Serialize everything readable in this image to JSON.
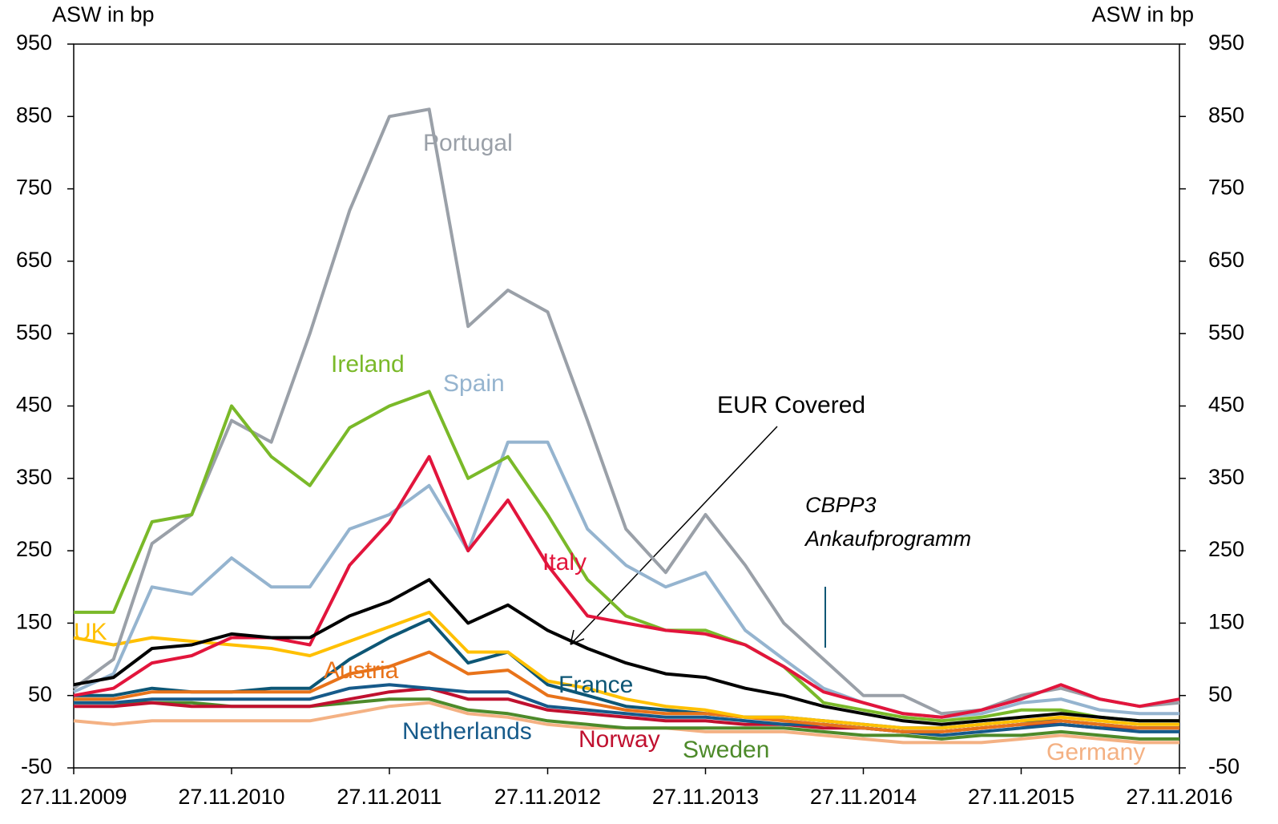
{
  "chart_data": {
    "type": "line",
    "y_label": "ASW in bp",
    "y2_label": "ASW in bp",
    "annotations": [
      "CBPP3",
      "Ankaufprogramm"
    ],
    "x": [
      "27.11.2009",
      "27.02.2010",
      "27.05.2010",
      "27.08.2010",
      "27.11.2010",
      "27.02.2011",
      "27.05.2011",
      "27.08.2011",
      "27.11.2011",
      "27.02.2012",
      "27.05.2012",
      "27.08.2012",
      "27.11.2012",
      "27.02.2013",
      "27.05.2013",
      "27.08.2013",
      "27.11.2013",
      "27.02.2014",
      "27.05.2014",
      "27.08.2014",
      "27.11.2014",
      "27.02.2015",
      "27.05.2015",
      "27.08.2015",
      "27.11.2015",
      "27.02.2016",
      "27.05.2016",
      "27.08.2016",
      "27.11.2016"
    ],
    "xlim": [
      "27.11.2009",
      "27.11.2016"
    ],
    "xticks": [
      "27.11.2009",
      "27.11.2010",
      "27.11.2011",
      "27.11.2012",
      "27.11.2013",
      "27.11.2014",
      "27.11.2015",
      "27.11.2016"
    ],
    "ylim": [
      -50,
      950
    ],
    "yticks": [
      -50,
      50,
      150,
      250,
      350,
      450,
      550,
      650,
      750,
      850,
      950
    ],
    "y2lim": [
      -50,
      950
    ],
    "y2ticks": [
      -50,
      50,
      150,
      250,
      350,
      450,
      550,
      650,
      750,
      850,
      950
    ],
    "series": [
      {
        "name": "Germany",
        "color": "#f4b183",
        "values": [
          15,
          10,
          15,
          15,
          15,
          15,
          15,
          25,
          35,
          40,
          25,
          20,
          10,
          5,
          5,
          5,
          0,
          0,
          0,
          -5,
          -10,
          -15,
          -15,
          -15,
          -10,
          -5,
          -10,
          -15,
          -15
        ]
      },
      {
        "name": "Sweden",
        "color": "#4d8a2a",
        "values": [
          40,
          40,
          40,
          40,
          35,
          35,
          35,
          40,
          45,
          45,
          30,
          25,
          15,
          10,
          5,
          5,
          5,
          5,
          5,
          0,
          -5,
          -5,
          -10,
          -5,
          -5,
          0,
          -5,
          -10,
          -10
        ]
      },
      {
        "name": "Norway",
        "color": "#c0102f",
        "values": [
          35,
          35,
          40,
          35,
          35,
          35,
          35,
          45,
          55,
          60,
          45,
          45,
          30,
          25,
          20,
          15,
          15,
          10,
          10,
          5,
          5,
          0,
          0,
          5,
          10,
          10,
          5,
          5,
          5
        ]
      },
      {
        "name": "Netherlands",
        "color": "#165a8a",
        "values": [
          40,
          40,
          45,
          45,
          45,
          45,
          45,
          60,
          65,
          60,
          55,
          55,
          35,
          30,
          25,
          20,
          20,
          15,
          10,
          10,
          5,
          0,
          -5,
          0,
          5,
          10,
          5,
          0,
          0
        ]
      },
      {
        "name": "France",
        "color": "#0d5675",
        "values": [
          50,
          50,
          60,
          55,
          55,
          60,
          60,
          100,
          130,
          155,
          95,
          110,
          65,
          50,
          35,
          30,
          25,
          20,
          20,
          15,
          10,
          5,
          5,
          10,
          15,
          15,
          10,
          5,
          5
        ]
      },
      {
        "name": "Austria",
        "color": "#e8731a",
        "values": [
          45,
          45,
          55,
          55,
          55,
          55,
          55,
          80,
          90,
          110,
          80,
          85,
          50,
          40,
          30,
          25,
          25,
          20,
          15,
          10,
          5,
          0,
          0,
          5,
          10,
          15,
          10,
          5,
          5
        ]
      },
      {
        "name": "UK",
        "color": "#ffc000",
        "values": [
          130,
          120,
          130,
          125,
          120,
          115,
          105,
          125,
          145,
          165,
          110,
          110,
          70,
          60,
          45,
          35,
          30,
          20,
          20,
          15,
          10,
          5,
          5,
          10,
          15,
          20,
          15,
          10,
          10
        ]
      },
      {
        "name": "Spain",
        "color": "#95b4cf",
        "values": [
          55,
          80,
          200,
          190,
          240,
          200,
          200,
          280,
          300,
          340,
          250,
          400,
          400,
          280,
          230,
          200,
          220,
          140,
          100,
          60,
          40,
          25,
          20,
          25,
          40,
          45,
          30,
          25,
          25
        ]
      },
      {
        "name": "Portugal",
        "color": "#9aa0a8",
        "values": [
          60,
          100,
          260,
          300,
          430,
          400,
          550,
          720,
          850,
          860,
          560,
          610,
          580,
          430,
          280,
          220,
          300,
          230,
          150,
          100,
          50,
          50,
          25,
          30,
          50,
          60,
          45,
          35,
          40
        ]
      },
      {
        "name": "Ireland",
        "color": "#7ab929",
        "values": [
          165,
          165,
          290,
          300,
          450,
          380,
          340,
          420,
          450,
          470,
          350,
          380,
          300,
          210,
          160,
          140,
          140,
          120,
          90,
          40,
          30,
          20,
          15,
          20,
          30,
          30,
          20,
          15,
          15
        ]
      },
      {
        "name": "Italy",
        "color": "#e2153c",
        "values": [
          50,
          60,
          95,
          105,
          130,
          130,
          120,
          230,
          290,
          380,
          250,
          320,
          230,
          160,
          150,
          140,
          135,
          120,
          90,
          55,
          40,
          25,
          20,
          30,
          45,
          65,
          45,
          35,
          45
        ]
      },
      {
        "name": "EUR Covered",
        "color": "#000000",
        "values": [
          65,
          75,
          115,
          120,
          135,
          130,
          130,
          160,
          180,
          210,
          150,
          175,
          140,
          115,
          95,
          80,
          75,
          60,
          50,
          35,
          25,
          15,
          10,
          15,
          20,
          25,
          20,
          15,
          15
        ]
      }
    ]
  }
}
